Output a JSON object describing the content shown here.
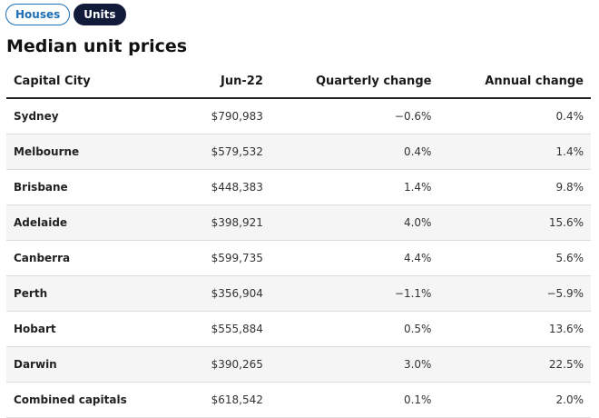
{
  "tabs": [
    {
      "label": "Houses",
      "active": false
    },
    {
      "label": "Units",
      "active": true
    }
  ],
  "title": "Median unit prices",
  "table": {
    "headers": [
      "Capital City",
      "Jun-22",
      "Quarterly change",
      "Annual change"
    ],
    "rows": [
      [
        "Sydney",
        "$790,983",
        "−0.6%",
        "0.4%"
      ],
      [
        "Melbourne",
        "$579,532",
        "0.4%",
        "1.4%"
      ],
      [
        "Brisbane",
        "$448,383",
        "1.4%",
        "9.8%"
      ],
      [
        "Adelaide",
        "$398,921",
        "4.0%",
        "15.6%"
      ],
      [
        "Canberra",
        "$599,735",
        "4.4%",
        "5.6%"
      ],
      [
        "Perth",
        "$356,904",
        "−1.1%",
        "−5.9%"
      ],
      [
        "Hobart",
        "$555,884",
        "0.5%",
        "13.6%"
      ],
      [
        "Darwin",
        "$390,265",
        "3.0%",
        "22.5%"
      ],
      [
        "Combined capitals",
        "$618,542",
        "0.1%",
        "2.0%"
      ]
    ]
  },
  "colors": {
    "tab_active_bg": "#121a3a",
    "tab_inactive_border": "#1b6fb6",
    "row_stripe": "#f5f5f5"
  }
}
